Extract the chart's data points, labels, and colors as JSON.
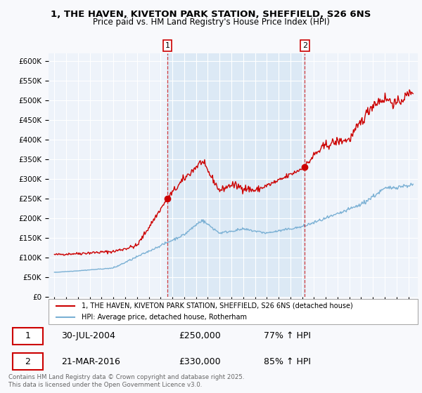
{
  "title1": "1, THE HAVEN, KIVETON PARK STATION, SHEFFIELD, S26 6NS",
  "title2": "Price paid vs. HM Land Registry's House Price Index (HPI)",
  "ylim": [
    0,
    620000
  ],
  "yticks": [
    0,
    50000,
    100000,
    150000,
    200000,
    250000,
    300000,
    350000,
    400000,
    450000,
    500000,
    550000,
    600000
  ],
  "ytick_labels": [
    "£0",
    "£50K",
    "£100K",
    "£150K",
    "£200K",
    "£250K",
    "£300K",
    "£350K",
    "£400K",
    "£450K",
    "£500K",
    "£550K",
    "£600K"
  ],
  "red_color": "#cc0000",
  "blue_color": "#7ab0d4",
  "shade_color": "#dce9f5",
  "point1_x": 2004.58,
  "point1_y": 250000,
  "point1_label": "1",
  "point2_x": 2016.22,
  "point2_y": 330000,
  "point2_label": "2",
  "legend_red": "1, THE HAVEN, KIVETON PARK STATION, SHEFFIELD, S26 6NS (detached house)",
  "legend_blue": "HPI: Average price, detached house, Rotherham",
  "table_row1": [
    "1",
    "30-JUL-2004",
    "£250,000",
    "77% ↑ HPI"
  ],
  "table_row2": [
    "2",
    "21-MAR-2016",
    "£330,000",
    "85% ↑ HPI"
  ],
  "footer": "Contains HM Land Registry data © Crown copyright and database right 2025.\nThis data is licensed under the Open Government Licence v3.0.",
  "fig_bg": "#f8f9fc",
  "plot_bg": "#eef3fa",
  "grid_color": "#ffffff",
  "xlim_left": 1994.5,
  "xlim_right": 2025.8
}
